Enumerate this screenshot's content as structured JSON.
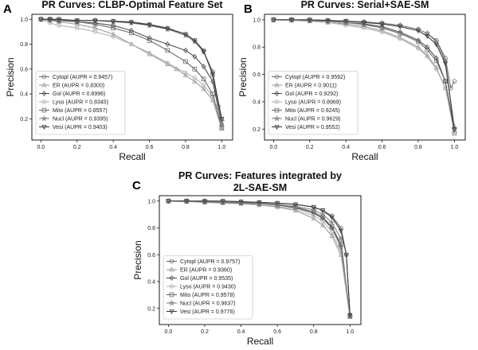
{
  "figure": {
    "panel_letters": [
      "A",
      "B",
      "C"
    ]
  },
  "chart_data": [
    {
      "type": "line",
      "panel": "A",
      "title": "PR Curves: CLBP-Optimal Feature Set",
      "title_lines": [
        "PR Curves: CLBP-Optimal Feature Set"
      ],
      "xlabel": "Recall",
      "ylabel": "Precision",
      "xlim": [
        -0.05,
        1.06
      ],
      "ylim": [
        0.03,
        1.04
      ],
      "xticks": [
        "0.0",
        "0.2",
        "0.4",
        "0.6",
        "0.8",
        "1.0"
      ],
      "yticks": [
        "0.2",
        "0.4",
        "0.6",
        "0.8",
        "1.0"
      ],
      "legend_position": "lower-left",
      "series": [
        {
          "name": "Cytopl",
          "label": "Cytopl (AUPR = 0.9457)",
          "marker": "circle",
          "color": "#6e6e6e",
          "x": [
            0.0,
            0.05,
            0.1,
            0.2,
            0.3,
            0.4,
            0.5,
            0.6,
            0.7,
            0.8,
            0.85,
            0.9,
            0.95,
            0.98,
            1.0
          ],
          "y": [
            1.0,
            0.99,
            0.99,
            0.99,
            0.99,
            0.985,
            0.98,
            0.96,
            0.93,
            0.88,
            0.83,
            0.75,
            0.55,
            0.3,
            0.2
          ]
        },
        {
          "name": "ER",
          "label": "ER (AUPR = 0.8300)",
          "marker": "triangle-up",
          "color": "#9a9a9a",
          "x": [
            0.0,
            0.05,
            0.1,
            0.2,
            0.3,
            0.4,
            0.5,
            0.6,
            0.7,
            0.75,
            0.8,
            0.85,
            0.9,
            0.95,
            1.0
          ],
          "y": [
            1.0,
            0.99,
            0.98,
            0.96,
            0.93,
            0.88,
            0.8,
            0.72,
            0.64,
            0.6,
            0.55,
            0.5,
            0.44,
            0.35,
            0.12
          ]
        },
        {
          "name": "Gol",
          "label": "Gol (AUPR = 0.8996)",
          "marker": "diamond",
          "color": "#4f4f4f",
          "x": [
            0.0,
            0.05,
            0.1,
            0.2,
            0.3,
            0.4,
            0.5,
            0.6,
            0.7,
            0.8,
            0.85,
            0.9,
            0.95,
            1.0
          ],
          "y": [
            1.0,
            1.0,
            0.99,
            0.98,
            0.97,
            0.95,
            0.91,
            0.85,
            0.8,
            0.75,
            0.7,
            0.62,
            0.5,
            0.15
          ]
        },
        {
          "name": "Lyso",
          "label": "Lyso (AUPR = 0.8345)",
          "marker": "hexagon",
          "color": "#b4b4b4",
          "x": [
            0.0,
            0.05,
            0.1,
            0.2,
            0.3,
            0.4,
            0.5,
            0.6,
            0.7,
            0.8,
            0.85,
            0.9,
            0.95,
            1.0
          ],
          "y": [
            1.0,
            0.97,
            0.95,
            0.93,
            0.9,
            0.86,
            0.8,
            0.73,
            0.65,
            0.57,
            0.53,
            0.47,
            0.38,
            0.14
          ]
        },
        {
          "name": "Mito",
          "label": "Mito (AUPR = 0.8557)",
          "marker": "square",
          "color": "#6a6a6a",
          "x": [
            0.0,
            0.05,
            0.1,
            0.2,
            0.3,
            0.4,
            0.5,
            0.6,
            0.7,
            0.8,
            0.85,
            0.9,
            0.95,
            1.0
          ],
          "y": [
            1.0,
            1.0,
            0.99,
            0.98,
            0.96,
            0.93,
            0.89,
            0.83,
            0.75,
            0.66,
            0.6,
            0.52,
            0.4,
            0.13
          ]
        },
        {
          "name": "Nucl",
          "label": "Nucl (AUPR = 0.9395)",
          "marker": "star",
          "color": "#888888",
          "x": [
            0.0,
            0.05,
            0.1,
            0.2,
            0.3,
            0.4,
            0.5,
            0.6,
            0.7,
            0.8,
            0.85,
            0.9,
            0.95,
            1.0
          ],
          "y": [
            1.0,
            1.0,
            1.0,
            0.99,
            0.99,
            0.98,
            0.97,
            0.95,
            0.92,
            0.87,
            0.82,
            0.74,
            0.58,
            0.18
          ]
        },
        {
          "name": "Vesi",
          "label": "Vesi (AUPR = 0.9403)",
          "marker": "triangle-down",
          "color": "#3c3c3c",
          "x": [
            0.0,
            0.05,
            0.1,
            0.2,
            0.3,
            0.4,
            0.5,
            0.6,
            0.7,
            0.8,
            0.85,
            0.9,
            0.95,
            1.0
          ],
          "y": [
            1.0,
            1.0,
            1.0,
            0.99,
            0.99,
            0.985,
            0.975,
            0.955,
            0.925,
            0.88,
            0.83,
            0.74,
            0.56,
            0.2
          ]
        }
      ]
    },
    {
      "type": "line",
      "panel": "B",
      "title": "PR Curves: Serial+SAE-SM",
      "title_lines": [
        "PR Curves: Serial+SAE-SM"
      ],
      "xlabel": "Recall",
      "ylabel": "Precision",
      "xlim": [
        -0.05,
        1.06
      ],
      "ylim": [
        0.12,
        1.04
      ],
      "xticks": [
        "0.0",
        "0.2",
        "0.4",
        "0.6",
        "0.8",
        "1.0"
      ],
      "yticks": [
        "0.2",
        "0.4",
        "0.6",
        "0.8",
        "1.0"
      ],
      "legend_position": "lower-left",
      "series": [
        {
          "name": "Cytopl",
          "label": "Cytopl (AUPR = 0.9592)",
          "marker": "circle",
          "color": "#6e6e6e",
          "x": [
            0.0,
            0.1,
            0.2,
            0.3,
            0.4,
            0.5,
            0.6,
            0.7,
            0.8,
            0.85,
            0.9,
            0.95,
            0.98,
            1.0
          ],
          "y": [
            1.0,
            1.0,
            1.0,
            0.995,
            0.99,
            0.985,
            0.975,
            0.96,
            0.93,
            0.9,
            0.85,
            0.72,
            0.5,
            0.55
          ]
        },
        {
          "name": "ER",
          "label": "ER (AUPR = 0.9011)",
          "marker": "triangle-up",
          "color": "#9a9a9a",
          "x": [
            0.0,
            0.1,
            0.2,
            0.3,
            0.4,
            0.5,
            0.6,
            0.7,
            0.8,
            0.85,
            0.9,
            0.95,
            1.0
          ],
          "y": [
            1.0,
            0.995,
            0.99,
            0.98,
            0.97,
            0.95,
            0.92,
            0.87,
            0.8,
            0.74,
            0.65,
            0.5,
            0.22
          ]
        },
        {
          "name": "Gol",
          "label": "Gol (AUPR = 0.9292)",
          "marker": "diamond",
          "color": "#4f4f4f",
          "x": [
            0.0,
            0.1,
            0.2,
            0.3,
            0.4,
            0.5,
            0.6,
            0.7,
            0.8,
            0.85,
            0.9,
            0.95,
            1.0
          ],
          "y": [
            1.0,
            1.0,
            0.995,
            0.99,
            0.98,
            0.97,
            0.95,
            0.91,
            0.85,
            0.8,
            0.72,
            0.55,
            0.2
          ]
        },
        {
          "name": "Lyso",
          "label": "Lyso (AUPR = 0.8969)",
          "marker": "hexagon",
          "color": "#b4b4b4",
          "x": [
            0.0,
            0.1,
            0.2,
            0.3,
            0.4,
            0.5,
            0.6,
            0.7,
            0.8,
            0.85,
            0.9,
            0.95,
            1.0
          ],
          "y": [
            1.0,
            0.995,
            0.99,
            0.98,
            0.96,
            0.94,
            0.91,
            0.86,
            0.79,
            0.73,
            0.64,
            0.5,
            0.18
          ]
        },
        {
          "name": "Mito",
          "label": "Mito (AUPR = 0.9245)",
          "marker": "square",
          "color": "#6a6a6a",
          "x": [
            0.0,
            0.1,
            0.2,
            0.3,
            0.4,
            0.5,
            0.6,
            0.7,
            0.8,
            0.85,
            0.9,
            0.95,
            1.0
          ],
          "y": [
            1.0,
            1.0,
            0.995,
            0.99,
            0.98,
            0.965,
            0.94,
            0.9,
            0.84,
            0.78,
            0.7,
            0.55,
            0.17
          ]
        },
        {
          "name": "Nucl",
          "label": "Nucl (AUPR = 0.9629)",
          "marker": "star",
          "color": "#888888",
          "x": [
            0.0,
            0.1,
            0.2,
            0.3,
            0.4,
            0.5,
            0.6,
            0.7,
            0.8,
            0.85,
            0.9,
            0.95,
            1.0
          ],
          "y": [
            1.0,
            1.0,
            1.0,
            0.995,
            0.99,
            0.985,
            0.975,
            0.96,
            0.93,
            0.9,
            0.84,
            0.7,
            0.2
          ]
        },
        {
          "name": "Vesi",
          "label": "Vesi (AUPR = 0.9552)",
          "marker": "triangle-down",
          "color": "#3c3c3c",
          "x": [
            0.0,
            0.1,
            0.2,
            0.3,
            0.4,
            0.5,
            0.6,
            0.7,
            0.8,
            0.85,
            0.9,
            0.95,
            1.0
          ],
          "y": [
            1.0,
            1.0,
            1.0,
            0.995,
            0.99,
            0.98,
            0.97,
            0.95,
            0.92,
            0.88,
            0.82,
            0.68,
            0.2
          ]
        }
      ]
    },
    {
      "type": "line",
      "panel": "C",
      "title": "PR Curves: Features integrated by 2L-SAE-SM",
      "title_lines": [
        "PR Curves: Features integrated by",
        "2L-SAE-SM"
      ],
      "xlabel": "Recall",
      "ylabel": "Precision",
      "xlim": [
        -0.05,
        1.06
      ],
      "ylim": [
        0.08,
        1.04
      ],
      "xticks": [
        "0.0",
        "0.2",
        "0.4",
        "0.6",
        "0.8",
        "1.0"
      ],
      "yticks": [
        "0.2",
        "0.4",
        "0.6",
        "0.8",
        "1.0"
      ],
      "legend_position": "lower-left",
      "series": [
        {
          "name": "Cytopl",
          "label": "Cytopl (AUPR = 0.9757)",
          "marker": "circle",
          "color": "#6e6e6e",
          "x": [
            0.0,
            0.1,
            0.2,
            0.3,
            0.4,
            0.5,
            0.6,
            0.7,
            0.8,
            0.85,
            0.9,
            0.95,
            0.98,
            1.0
          ],
          "y": [
            1.0,
            1.0,
            1.0,
            1.0,
            0.995,
            0.99,
            0.985,
            0.975,
            0.955,
            0.93,
            0.89,
            0.8,
            0.6,
            0.15
          ]
        },
        {
          "name": "ER",
          "label": "ER (AUPR = 0.9360)",
          "marker": "triangle-up",
          "color": "#9a9a9a",
          "x": [
            0.0,
            0.1,
            0.2,
            0.3,
            0.4,
            0.5,
            0.6,
            0.7,
            0.8,
            0.85,
            0.9,
            0.95,
            1.0
          ],
          "y": [
            1.0,
            0.995,
            0.99,
            0.985,
            0.98,
            0.97,
            0.955,
            0.93,
            0.87,
            0.82,
            0.74,
            0.6,
            0.14
          ]
        },
        {
          "name": "Gol",
          "label": "Gol (AUPR = 0.9535)",
          "marker": "diamond",
          "color": "#4f4f4f",
          "x": [
            0.0,
            0.1,
            0.2,
            0.3,
            0.4,
            0.5,
            0.6,
            0.7,
            0.8,
            0.85,
            0.9,
            0.95,
            1.0
          ],
          "y": [
            1.0,
            1.0,
            0.995,
            0.99,
            0.985,
            0.98,
            0.97,
            0.95,
            0.91,
            0.87,
            0.8,
            0.66,
            0.15
          ]
        },
        {
          "name": "Lyso",
          "label": "Lyso (AUPR = 0.9430)",
          "marker": "hexagon",
          "color": "#b4b4b4",
          "x": [
            0.0,
            0.1,
            0.2,
            0.3,
            0.4,
            0.5,
            0.6,
            0.7,
            0.8,
            0.85,
            0.9,
            0.95,
            1.0
          ],
          "y": [
            1.0,
            0.995,
            0.99,
            0.985,
            0.98,
            0.97,
            0.96,
            0.94,
            0.89,
            0.85,
            0.77,
            0.62,
            0.14
          ]
        },
        {
          "name": "Mito",
          "label": "Mito (AUPR = 0.9578)",
          "marker": "square",
          "color": "#6a6a6a",
          "x": [
            0.0,
            0.1,
            0.2,
            0.3,
            0.4,
            0.5,
            0.6,
            0.7,
            0.8,
            0.85,
            0.9,
            0.95,
            1.0
          ],
          "y": [
            1.0,
            1.0,
            0.995,
            0.99,
            0.985,
            0.98,
            0.97,
            0.955,
            0.92,
            0.88,
            0.81,
            0.68,
            0.14
          ]
        },
        {
          "name": "Nucl",
          "label": "Nucl (AUPR = 0.9637)",
          "marker": "star",
          "color": "#888888",
          "x": [
            0.0,
            0.1,
            0.2,
            0.3,
            0.4,
            0.5,
            0.6,
            0.7,
            0.8,
            0.85,
            0.9,
            0.95,
            1.0
          ],
          "y": [
            1.0,
            1.0,
            1.0,
            0.995,
            0.99,
            0.985,
            0.975,
            0.96,
            0.935,
            0.9,
            0.84,
            0.72,
            0.14
          ]
        },
        {
          "name": "Vesi",
          "label": "Vesi (AUPR = 0.9776)",
          "marker": "triangle-down",
          "color": "#3c3c3c",
          "x": [
            0.0,
            0.1,
            0.2,
            0.3,
            0.4,
            0.5,
            0.6,
            0.7,
            0.8,
            0.85,
            0.9,
            0.95,
            0.98,
            1.0
          ],
          "y": [
            1.0,
            1.0,
            1.0,
            1.0,
            0.995,
            0.99,
            0.985,
            0.975,
            0.955,
            0.93,
            0.88,
            0.78,
            0.6,
            0.15
          ]
        }
      ]
    }
  ]
}
